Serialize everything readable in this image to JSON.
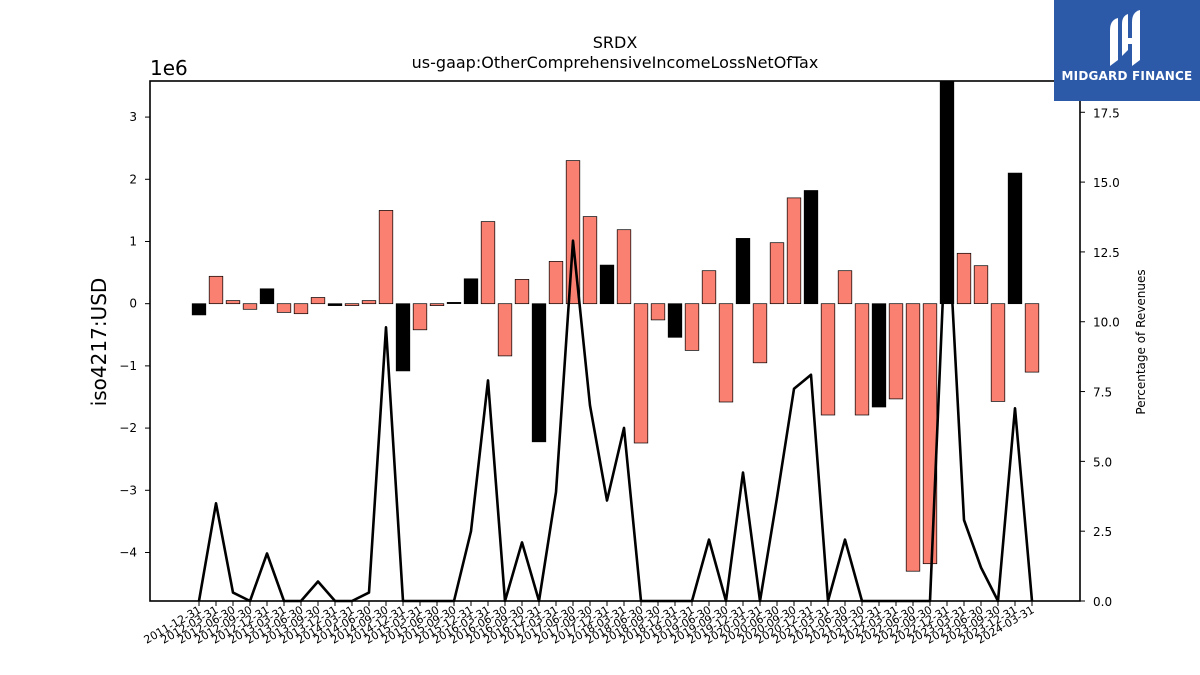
{
  "chart_data": {
    "type": "bar",
    "title": "SRDX",
    "subtitle": "us-gaap:OtherComprehensiveIncomeLossNetOfTax",
    "ylabel": "iso4217:USD",
    "y_offset_label": "1e6",
    "y2label": "Percentage of Revenues",
    "ylim": [
      -4.78,
      3.58
    ],
    "y2lim": [
      0.0,
      18.62
    ],
    "y_ticks": [
      -4,
      -3,
      -2,
      -1,
      0,
      1,
      2,
      3
    ],
    "y_tick_labels": [
      "−4",
      "−3",
      "−2",
      "−1",
      "0",
      "1",
      "2",
      "3"
    ],
    "y2_ticks": [
      0.0,
      2.5,
      5.0,
      7.5,
      10.0,
      12.5,
      15.0,
      17.5
    ],
    "y2_tick_labels": [
      "0.0",
      "2.5",
      "5.0",
      "7.5",
      "10.0",
      "12.5",
      "15.0",
      "17.5"
    ],
    "grid": false,
    "colors": {
      "positive_delta": "#fa8072",
      "negative_delta": "#000000",
      "line": "#000000"
    },
    "categories": [
      "2011-12-31",
      "2012-03-31",
      "2012-06-30",
      "2012-09-30",
      "2012-12-31",
      "2013-03-31",
      "2013-06-30",
      "2013-09-30",
      "2013-12-31",
      "2014-03-31",
      "2014-06-30",
      "2014-09-30",
      "2014-12-31",
      "2015-03-31",
      "2015-06-30",
      "2015-09-30",
      "2015-12-31",
      "2016-03-31",
      "2016-06-30",
      "2016-09-30",
      "2016-12-31",
      "2017-03-31",
      "2017-06-30",
      "2017-09-30",
      "2017-12-31",
      "2018-03-31",
      "2018-06-30",
      "2018-09-30",
      "2018-12-31",
      "2019-03-31",
      "2019-06-30",
      "2019-09-30",
      "2019-12-31",
      "2020-03-31",
      "2020-06-30",
      "2020-09-30",
      "2020-12-31",
      "2021-03-31",
      "2021-06-30",
      "2021-09-30",
      "2021-12-31",
      "2022-03-31",
      "2022-06-30",
      "2022-09-30",
      "2022-12-31",
      "2023-03-31",
      "2023-06-30",
      "2023-09-30",
      "2023-12-31",
      "2024-03-31"
    ],
    "series": [
      {
        "kind": "bar",
        "values": [
          -0.18,
          0.44,
          0.05,
          -0.09,
          0.24,
          -0.14,
          -0.16,
          0.1,
          -0.03,
          -0.03,
          0.05,
          1.5,
          -1.08,
          -0.42,
          -0.03,
          0.02,
          0.4,
          1.32,
          -0.84,
          0.39,
          -2.22,
          0.68,
          2.3,
          1.4,
          0.62,
          1.19,
          -2.24,
          -0.26,
          -0.54,
          -0.75,
          0.53,
          -1.58,
          1.05,
          -0.95,
          0.98,
          1.7,
          1.82,
          -1.79,
          0.53,
          -1.79,
          -1.66,
          -1.53,
          -4.3,
          -4.18,
          3.58,
          0.81,
          0.61,
          -1.57,
          2.1,
          -1.1
        ],
        "bar_colors": [
          "#000000",
          "#fa8072",
          "#fa8072",
          "#fa8072",
          "#000000",
          "#fa8072",
          "#fa8072",
          "#fa8072",
          "#000000",
          "#fa8072",
          "#fa8072",
          "#fa8072",
          "#000000",
          "#fa8072",
          "#fa8072",
          "#000000",
          "#000000",
          "#fa8072",
          "#fa8072",
          "#fa8072",
          "#000000",
          "#fa8072",
          "#fa8072",
          "#fa8072",
          "#000000",
          "#fa8072",
          "#fa8072",
          "#fa8072",
          "#000000",
          "#fa8072",
          "#fa8072",
          "#fa8072",
          "#000000",
          "#fa8072",
          "#fa8072",
          "#fa8072",
          "#000000",
          "#fa8072",
          "#fa8072",
          "#fa8072",
          "#000000",
          "#fa8072",
          "#fa8072",
          "#fa8072",
          "#000000",
          "#fa8072",
          "#fa8072",
          "#fa8072",
          "#000000",
          "#fa8072"
        ]
      },
      {
        "kind": "line",
        "axis": "y2",
        "values": [
          0.0,
          3.5,
          0.3,
          0.0,
          1.7,
          0.0,
          0.0,
          0.7,
          0.0,
          0.0,
          0.3,
          9.8,
          0.0,
          0.0,
          0.0,
          0.0,
          2.5,
          7.9,
          0.0,
          2.1,
          0.0,
          3.9,
          12.9,
          7.0,
          3.6,
          6.2,
          0.0,
          0.0,
          0.0,
          0.0,
          2.2,
          0.0,
          4.6,
          0.0,
          3.7,
          7.6,
          8.1,
          0.0,
          2.2,
          0.0,
          0.0,
          0.0,
          0.0,
          0.0,
          14.3,
          2.9,
          1.2,
          0.0,
          6.9,
          0.0
        ]
      }
    ]
  },
  "logo": {
    "brand_text": "MIDGARD FINANCE",
    "icon": "midgard-logo-icon"
  }
}
